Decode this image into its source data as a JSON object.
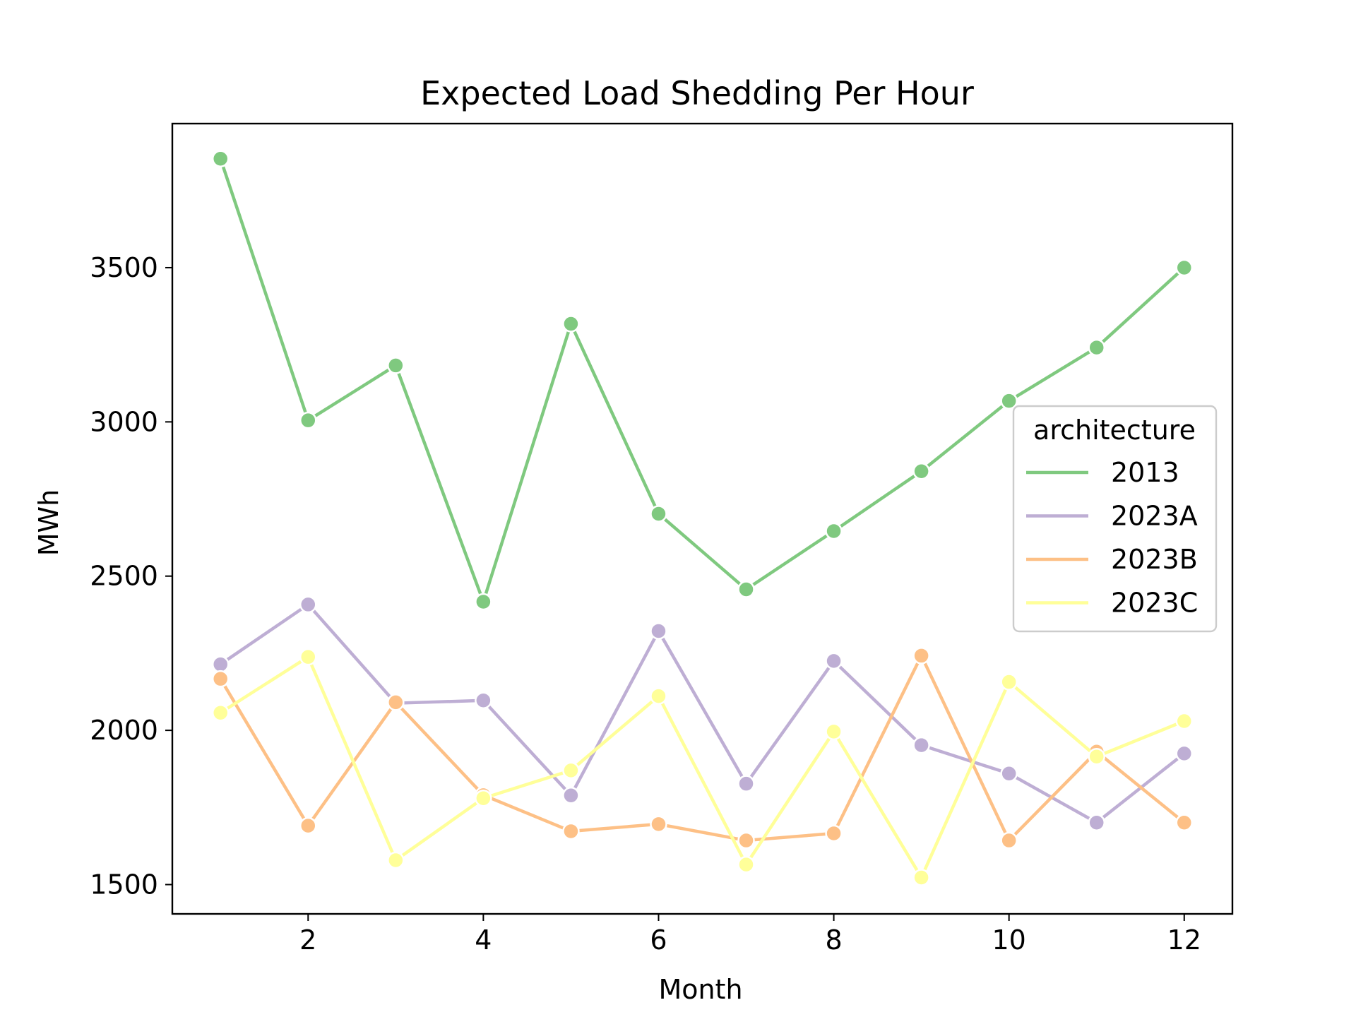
{
  "chart_data": {
    "type": "line",
    "title": "Expected Load Shedding Per Hour",
    "xlabel": "Month",
    "ylabel": "MWh",
    "xlim": [
      0.45,
      12.55
    ],
    "ylim": [
      1405,
      3967
    ],
    "xticks": [
      2,
      4,
      6,
      8,
      10,
      12
    ],
    "yticks": [
      1500,
      2000,
      2500,
      3000,
      3500
    ],
    "grid": false,
    "legend": {
      "title": "architecture",
      "placement": "center-right"
    },
    "x": [
      1,
      2,
      3,
      4,
      5,
      6,
      7,
      8,
      9,
      10,
      11,
      12
    ],
    "series": [
      {
        "name": "2013",
        "color": "#7fc97f",
        "values": [
          3853,
          3005,
          3183,
          2417,
          3318,
          2702,
          2457,
          2646,
          2840,
          3068,
          3241,
          3500
        ]
      },
      {
        "name": "2023A",
        "color": "#beaed4",
        "values": [
          2214,
          2408,
          2088,
          2097,
          1789,
          2322,
          1827,
          2225,
          1952,
          1860,
          1701,
          1925
        ]
      },
      {
        "name": "2023B",
        "color": "#fdc086",
        "values": [
          2167,
          1691,
          2091,
          1790,
          1673,
          1696,
          1643,
          1666,
          2242,
          1643,
          1931,
          1701
        ]
      },
      {
        "name": "2023C",
        "color": "#ffff99",
        "values": [
          2057,
          2238,
          1579,
          1780,
          1870,
          2111,
          1565,
          1996,
          1523,
          2157,
          1915,
          2030
        ]
      }
    ]
  }
}
